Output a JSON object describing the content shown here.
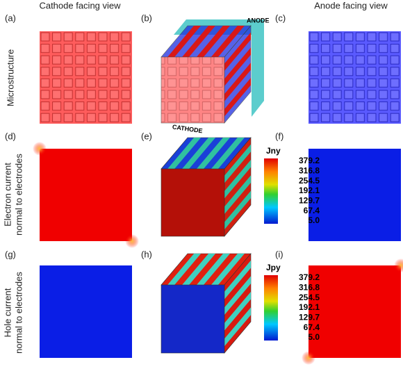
{
  "column_headers": [
    "Cathode facing view",
    "Anode facing view"
  ],
  "row_labels": [
    [
      "Microstructure"
    ],
    [
      "Electron current",
      "normal to electrodes"
    ],
    [
      "Hole current",
      "normal to electrodes"
    ]
  ],
  "panel_labels": [
    "(a)",
    "(b)",
    "(c)",
    "(d)",
    "(e)",
    "(f)",
    "(g)",
    "(h)",
    "(i)"
  ],
  "electrode_labels": {
    "anode": "ANODE",
    "cathode": "CATHODE"
  },
  "colorbars": [
    {
      "title": "Jny",
      "ticks": [
        "379.2",
        "316.8",
        "254.5",
        "192.1",
        "129.7",
        "67.4",
        "5.0"
      ]
    },
    {
      "title": "Jpy",
      "ticks": [
        "379.2",
        "316.8",
        "254.5",
        "192.1",
        "129.7",
        "67.4",
        "5.0"
      ]
    }
  ]
}
